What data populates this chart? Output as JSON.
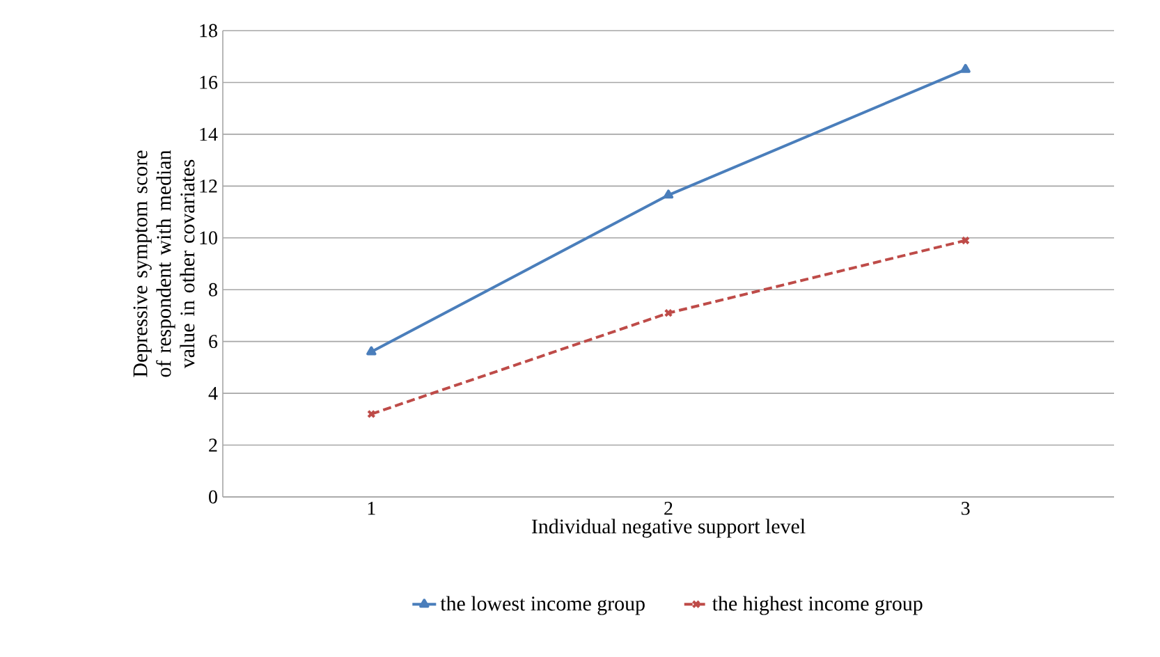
{
  "chart_data": {
    "type": "line",
    "xlabel": "Individual negative support level",
    "ylabel": "Depressive symptom score of respondent with median value in other covariates",
    "categories": [
      "1",
      "2",
      "3"
    ],
    "series": [
      {
        "name": "the lowest income group",
        "color": "#4a7ebb",
        "values": [
          5.6,
          11.65,
          16.5
        ],
        "marker": "triangle",
        "line_style": "solid"
      },
      {
        "name": "the highest income group",
        "color": "#be4b48",
        "values": [
          3.2,
          7.1,
          9.9
        ],
        "marker": "cross",
        "line_style": "dashed"
      }
    ],
    "ylim": [
      0,
      18
    ],
    "yticks": [
      0,
      2,
      4,
      6,
      8,
      10,
      12,
      14,
      16,
      18
    ],
    "grid": "y",
    "legend": "bottom"
  }
}
